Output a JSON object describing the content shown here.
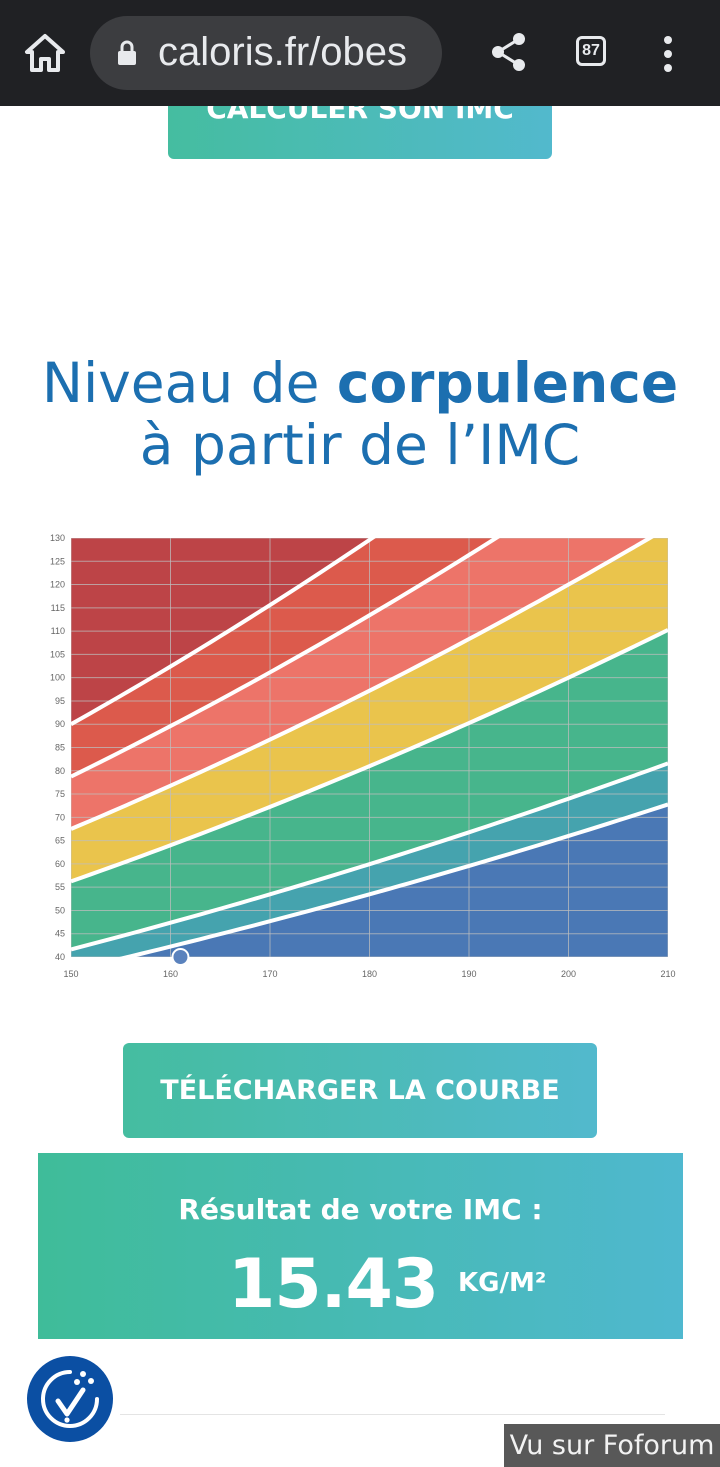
{
  "browser": {
    "url": "caloris.fr/obes",
    "tab_count": "87"
  },
  "top_cta": {
    "label": "CALCULER SON IMC"
  },
  "heading": {
    "line1_prefix": "Niveau de ",
    "line1_bold": "corpulence",
    "line2": "à partir de l’IMC"
  },
  "chart_data": {
    "type": "area",
    "x": [
      150,
      160,
      170,
      180,
      190,
      200,
      210
    ],
    "xlim": [
      150,
      210
    ],
    "ylim": [
      40,
      130
    ],
    "x_ticks": [
      "150",
      "160",
      "170",
      "180",
      "190",
      "200",
      "210"
    ],
    "y_ticks": [
      "40",
      "45",
      "50",
      "55",
      "60",
      "65",
      "70",
      "75",
      "80",
      "85",
      "90",
      "95",
      "100",
      "105",
      "110",
      "115",
      "120",
      "125",
      "130"
    ],
    "bmi_boundaries": [
      16.5,
      18.5,
      25,
      30,
      35,
      40
    ],
    "band_colors": [
      "#4a78b5",
      "#45a3ae",
      "#47b58c",
      "#eac44c",
      "#ed7469",
      "#dc5a4c",
      "#bd4447"
    ],
    "marker": {
      "x": 161,
      "y": 40,
      "color": "#5a82bd"
    },
    "grid": true
  },
  "download_button": {
    "label": "TÉLÉCHARGER LA COURBE"
  },
  "result": {
    "label": "Résultat de votre IMC :",
    "value": "15.43",
    "unit": "KG/M²"
  },
  "watermark": {
    "text": "Vu sur Foforum"
  }
}
